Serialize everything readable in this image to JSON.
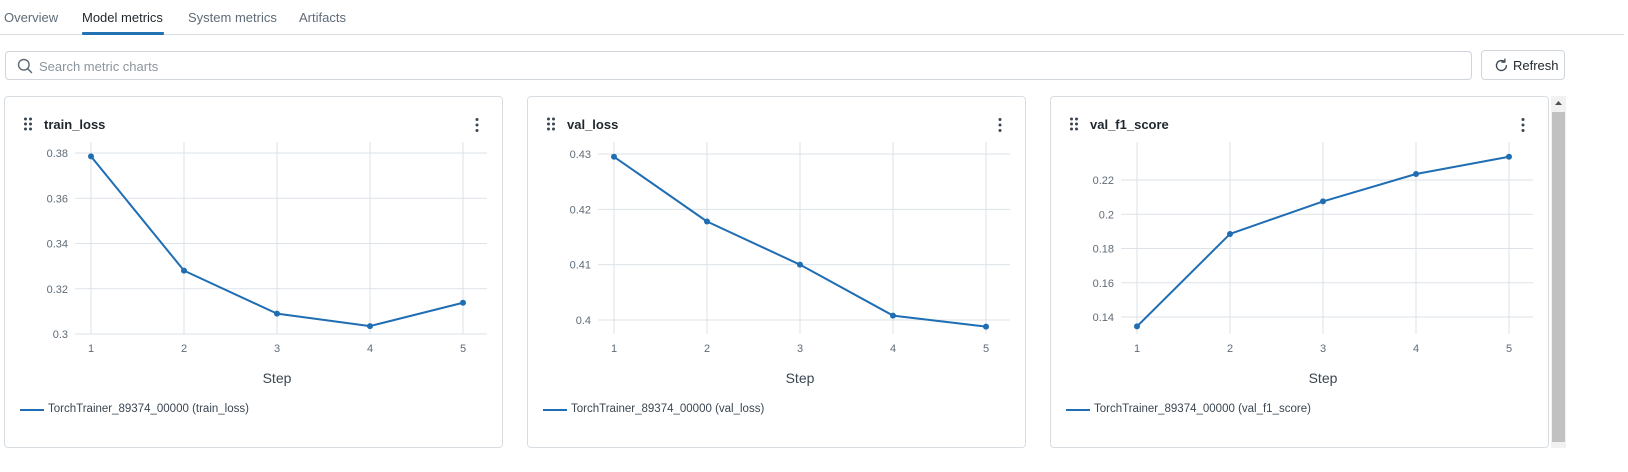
{
  "tabs": [
    {
      "label": "Overview",
      "active": false
    },
    {
      "label": "Model metrics",
      "active": true
    },
    {
      "label": "System metrics",
      "active": false
    },
    {
      "label": "Artifacts",
      "active": false
    }
  ],
  "search": {
    "placeholder": "Search metric charts",
    "value": ""
  },
  "toolbar": {
    "refresh_label": "Refresh"
  },
  "colors": {
    "accent": "#2272b4",
    "series": "#1f6eb4",
    "grid": "#dde3e8"
  },
  "icons": {
    "search": "search-icon",
    "refresh": "refresh-icon",
    "drag": "drag-handle-icon",
    "menu": "kebab-menu-icon"
  },
  "chart_data": [
    {
      "type": "line",
      "title": "train_loss",
      "xlabel": "Step",
      "ylabel": "",
      "x": [
        1,
        2,
        3,
        4,
        5
      ],
      "xticks": [
        "1",
        "2",
        "3",
        "4",
        "5"
      ],
      "yticks": [
        "0.38",
        "0.36",
        "0.34",
        "0.32",
        "0.3"
      ],
      "ylim": [
        0.3,
        0.38
      ],
      "grid": true,
      "legend_position": "bottom-left",
      "series": [
        {
          "name": "TorchTrainer_89374_00000 (train_loss)",
          "values": [
            0.3785,
            0.328,
            0.309,
            0.3035,
            0.3138
          ]
        }
      ]
    },
    {
      "type": "line",
      "title": "val_loss",
      "xlabel": "Step",
      "ylabel": "",
      "x": [
        1,
        2,
        3,
        4,
        5
      ],
      "xticks": [
        "1",
        "2",
        "3",
        "4",
        "5"
      ],
      "yticks": [
        "0.43",
        "0.42",
        "0.41",
        "0.4"
      ],
      "ylim": [
        0.4,
        0.43
      ],
      "grid": true,
      "legend_position": "bottom-left",
      "series": [
        {
          "name": "TorchTrainer_89374_00000 (val_loss)",
          "values": [
            0.4295,
            0.4178,
            0.41,
            0.4008,
            0.3988
          ]
        }
      ]
    },
    {
      "type": "line",
      "title": "val_f1_score",
      "xlabel": "Step",
      "ylabel": "",
      "x": [
        1,
        2,
        3,
        4,
        5
      ],
      "xticks": [
        "1",
        "2",
        "3",
        "4",
        "5"
      ],
      "yticks": [
        "0.22",
        "0.2",
        "0.18",
        "0.16",
        "0.14"
      ],
      "ylim": [
        0.14,
        0.22
      ],
      "grid": true,
      "legend_position": "bottom-left",
      "series": [
        {
          "name": "TorchTrainer_89374_00000 (val_f1_score)",
          "values": [
            0.1345,
            0.1885,
            0.2075,
            0.2235,
            0.2336
          ]
        }
      ]
    }
  ]
}
